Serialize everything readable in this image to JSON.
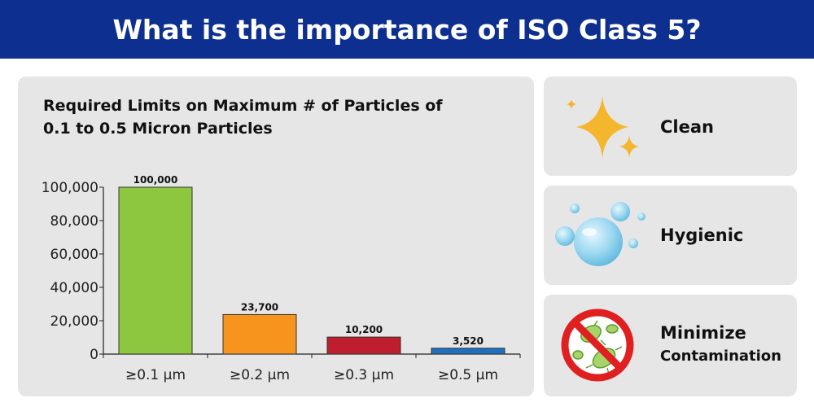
{
  "banner": {
    "title": "What is the importance of ISO Class 5?"
  },
  "chart_data": {
    "type": "bar",
    "title": "Required Limits on Maximum # of Particles of 0.1 to 0.5 Micron Particles",
    "title_lines": [
      "Required Limits on Maximum # of Particles of",
      "0.1 to 0.5 Micron Particles"
    ],
    "categories": [
      "≥0.1 µm",
      "≥0.2 µm",
      "≥0.3 µm",
      "≥0.5 µm"
    ],
    "values": [
      100000,
      23700,
      10200,
      3520
    ],
    "data_labels": [
      "100,000",
      "23,700",
      "10,200",
      "3,520"
    ],
    "bar_colors": [
      "#8dc63f",
      "#f7941d",
      "#be1e2d",
      "#1f6fc1"
    ],
    "ylim": [
      0,
      100000
    ],
    "yticks": [
      0,
      20000,
      40000,
      60000,
      80000,
      100000
    ],
    "ytick_labels": [
      "0",
      "20,000",
      "40,000",
      "60,000",
      "80,000",
      "100,000"
    ],
    "xlabel": "",
    "ylabel": "",
    "grid": false
  },
  "cards": [
    {
      "label": "Clean",
      "icon": "sparkle-icon"
    },
    {
      "label": "Hygienic",
      "icon": "bubbles-icon"
    },
    {
      "label_line1": "Minimize",
      "label_line2": "Contamination",
      "icon": "no-bacteria-icon"
    }
  ],
  "colors": {
    "banner": "#0d2f8f",
    "panel": "#e6e6e6",
    "sparkle": "#f4b62c",
    "bubble": "#8fd3ef",
    "prohibit": "#e02020",
    "bacteria": "#8dc63f"
  }
}
